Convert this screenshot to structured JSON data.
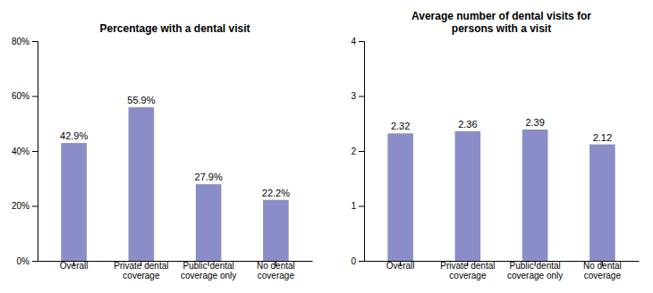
{
  "chart_data": [
    {
      "type": "bar",
      "title": "Percentage with a dental visit",
      "categories": [
        "Overall",
        "Private dental\ncoverage",
        "Public dental\ncoverage only",
        "No dental\ncoverage"
      ],
      "values": [
        42.9,
        55.9,
        27.9,
        22.2
      ],
      "value_labels": [
        "42.9%",
        "55.9%",
        "27.9%",
        "22.2%"
      ],
      "color": "#8B8DC8",
      "ylim": [
        0,
        80
      ],
      "yticks": [
        {
          "value": 0,
          "label": "0%"
        },
        {
          "value": 20,
          "label": "20%"
        },
        {
          "value": 40,
          "label": "40%"
        },
        {
          "value": 60,
          "label": "60%"
        },
        {
          "value": 80,
          "label": "80%"
        }
      ],
      "grid": false,
      "data_labels": true
    },
    {
      "type": "bar",
      "title": "Average number of dental visits for\npersons with a visit",
      "categories": [
        "Overall",
        "Private dental\ncoverage",
        "Public dental\ncoverage only",
        "No dental\ncoverage"
      ],
      "values": [
        2.32,
        2.36,
        2.39,
        2.12
      ],
      "color": "#8B8DC8",
      "ylim": [
        0,
        4
      ],
      "yticks": [
        0,
        1,
        2,
        3,
        4
      ],
      "grid": false,
      "data_labels": true
    }
  ]
}
